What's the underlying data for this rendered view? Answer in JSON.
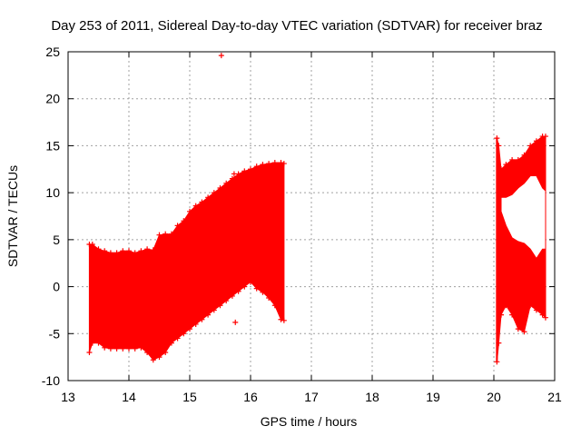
{
  "chart_data": {
    "type": "area",
    "title": "Day 253 of 2011, Sidereal Day-to-day VTEC variation (SDTVAR) for receiver braz",
    "xlabel": "GPS time / hours",
    "ylabel": "SDTVAR / TECUs",
    "xlim": [
      13,
      21
    ],
    "ylim": [
      -10,
      25
    ],
    "x_ticks": [
      13,
      14,
      15,
      16,
      17,
      18,
      19,
      20,
      21
    ],
    "y_ticks": [
      -10,
      -5,
      0,
      5,
      10,
      15,
      20,
      25
    ],
    "x_tick_labels": [
      "13",
      "14",
      "15",
      "16",
      "17",
      "18",
      "19",
      "20",
      "21"
    ],
    "y_tick_labels": [
      "-10",
      "-5",
      "0",
      "5",
      "10",
      "15",
      "20",
      "25"
    ],
    "grid": true,
    "marker": "+",
    "color": "#ff0000",
    "series": [
      {
        "x": [
          13.35,
          13.4,
          13.5,
          13.6,
          13.7,
          13.8,
          13.9,
          14.0,
          14.1,
          14.2,
          14.3,
          14.4,
          14.5,
          14.6,
          14.7,
          14.8,
          14.9,
          15.0,
          15.1,
          15.2,
          15.3,
          15.4,
          15.5,
          15.6,
          15.7,
          15.8,
          15.9,
          16.0,
          16.1,
          16.2,
          16.3,
          16.4,
          16.5,
          16.55
        ],
        "upper": [
          4.5,
          4.5,
          4.0,
          3.8,
          3.6,
          3.6,
          3.8,
          3.8,
          3.6,
          3.8,
          4.0,
          3.9,
          5.5,
          5.6,
          5.6,
          6.5,
          7.0,
          8.0,
          8.6,
          9.0,
          9.5,
          10.0,
          10.5,
          11.0,
          11.5,
          12.0,
          12.3,
          12.5,
          12.8,
          13.0,
          13.1,
          13.2,
          13.2,
          13.1
        ],
        "lower": [
          -7.0,
          -6.0,
          -6.0,
          -6.5,
          -6.6,
          -6.6,
          -6.6,
          -6.6,
          -6.6,
          -6.5,
          -7.0,
          -7.8,
          -7.5,
          -7.0,
          -6.0,
          -5.5,
          -5.0,
          -4.5,
          -4.0,
          -3.5,
          -3.0,
          -2.5,
          -2.0,
          -1.5,
          -1.0,
          -0.5,
          0.0,
          0.5,
          -0.2,
          -0.6,
          -1.2,
          -2.0,
          -3.5,
          -3.6
        ]
      },
      {
        "x": [
          20.05,
          20.08,
          20.12,
          20.2,
          20.3,
          20.4,
          20.5,
          20.6,
          20.7,
          20.8,
          20.85
        ],
        "upper": [
          15.8,
          15.0,
          12.5,
          13.0,
          13.5,
          13.5,
          14.0,
          15.0,
          15.5,
          16.0,
          16.0
        ],
        "lower": [
          -8.0,
          -6.0,
          -3.0,
          -2.0,
          -3.0,
          -4.5,
          -4.8,
          -2.0,
          -2.5,
          -3.0,
          -3.3
        ],
        "gap_upper": [
          null,
          null,
          8.0,
          6.5,
          5.2,
          4.8,
          4.6,
          4.0,
          3.0,
          4.0,
          4.0
        ],
        "gap_lower": [
          null,
          null,
          9.5,
          9.5,
          9.8,
          10.5,
          11.0,
          11.8,
          11.8,
          10.5,
          10.2
        ]
      }
    ],
    "outliers": [
      {
        "x": 15.52,
        "y": 24.6
      },
      {
        "x": 15.75,
        "y": -3.8
      },
      {
        "x": 15.73,
        "y": 12.0
      }
    ]
  }
}
